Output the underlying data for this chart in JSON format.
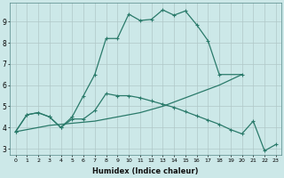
{
  "xlabel": "Humidex (Indice chaleur)",
  "bg_color": "#cce8e8",
  "grid_color": "#b0c8c8",
  "line_color": "#2a7a6a",
  "series": [
    {
      "x": [
        0,
        1,
        2,
        3,
        4,
        5,
        6,
        7,
        8,
        9,
        10,
        11,
        12,
        13,
        14,
        15,
        16,
        17,
        18,
        20
      ],
      "y": [
        3.8,
        4.6,
        4.7,
        4.5,
        4.0,
        4.5,
        5.5,
        6.5,
        8.2,
        8.2,
        9.35,
        9.05,
        9.1,
        9.55,
        9.3,
        9.5,
        8.85,
        8.1,
        6.5,
        6.5
      ],
      "marker": true
    },
    {
      "x": [
        0,
        1,
        2,
        3,
        4,
        5,
        6,
        7,
        8,
        9,
        10,
        11,
        12,
        13,
        14,
        15,
        16,
        17,
        18,
        19,
        20
      ],
      "y": [
        3.8,
        3.9,
        4.0,
        4.1,
        4.15,
        4.2,
        4.25,
        4.3,
        4.4,
        4.5,
        4.6,
        4.7,
        4.85,
        5.0,
        5.2,
        5.4,
        5.6,
        5.8,
        6.0,
        6.25,
        6.5
      ],
      "marker": false
    },
    {
      "x": [
        0,
        1,
        2,
        3,
        4,
        5,
        6,
        7,
        8,
        9,
        10,
        11,
        12,
        13,
        14,
        15,
        16,
        17,
        18,
        19,
        20,
        21,
        22,
        23
      ],
      "y": [
        3.8,
        4.6,
        4.7,
        4.5,
        4.0,
        4.4,
        4.4,
        4.8,
        5.6,
        5.5,
        5.5,
        5.4,
        5.25,
        5.1,
        4.95,
        4.75,
        4.55,
        4.35,
        4.15,
        3.9,
        3.7,
        4.3,
        2.9,
        3.2
      ],
      "marker": true
    }
  ],
  "xlim": [
    -0.5,
    23.5
  ],
  "ylim": [
    2.7,
    9.9
  ],
  "yticks": [
    3,
    4,
    5,
    6,
    7,
    8,
    9
  ],
  "xticks": [
    0,
    1,
    2,
    3,
    4,
    5,
    6,
    7,
    8,
    9,
    10,
    11,
    12,
    13,
    14,
    15,
    16,
    17,
    18,
    19,
    20,
    21,
    22,
    23
  ]
}
